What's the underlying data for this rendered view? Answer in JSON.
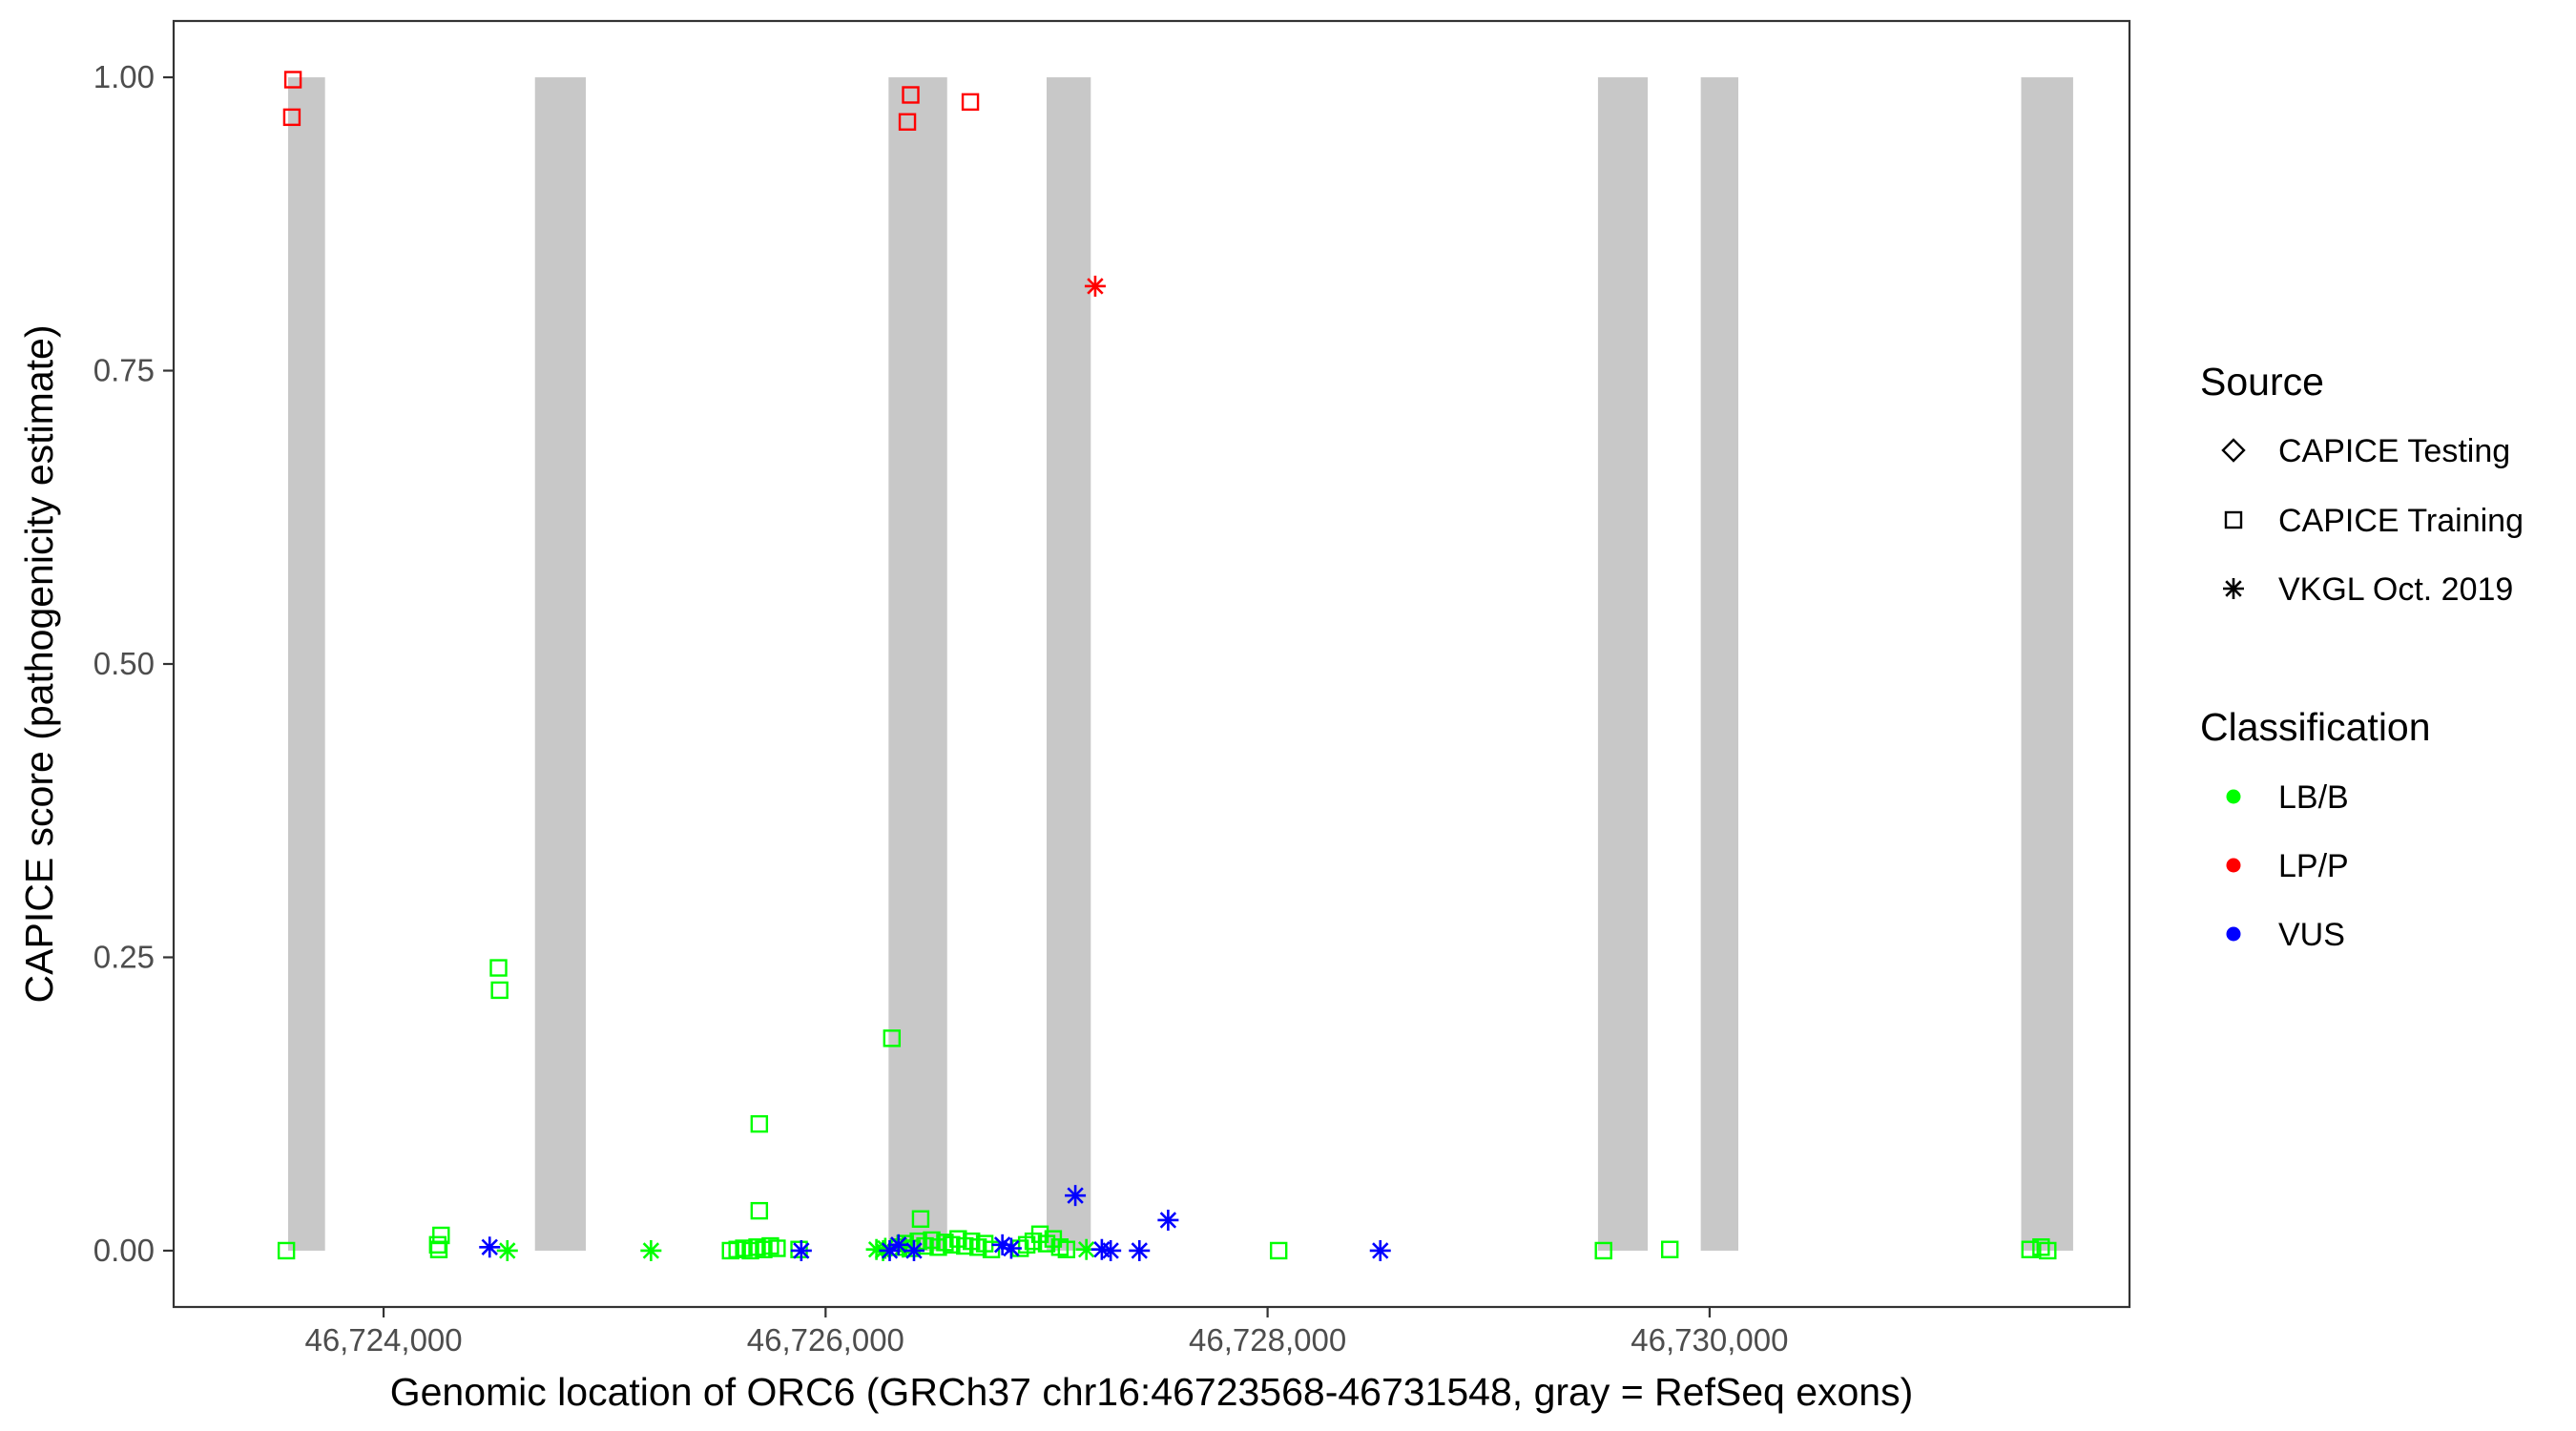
{
  "chart_data": {
    "type": "scatter",
    "xlabel": "Genomic location of ORC6 (GRCh37 chr16:46723568-46731548, gray = RefSeq exons)",
    "ylabel": "CAPICE score (pathogenicity estimate)",
    "xlim": [
      46723050,
      46731900
    ],
    "ylim": [
      -0.048,
      1.048
    ],
    "x_ticks": [
      46724000,
      46726000,
      46728000,
      46730000
    ],
    "x_tick_labels": [
      "46,724,000",
      "46,726,000",
      "46,728,000",
      "46,730,000"
    ],
    "y_ticks": [
      0,
      0.25,
      0.5,
      0.75,
      1.0
    ],
    "y_tick_labels": [
      "0.00",
      "0.25",
      "0.50",
      "0.75",
      "1.00"
    ],
    "grid": false,
    "exons": [
      {
        "start": 46723568,
        "end": 46723735
      },
      {
        "start": 46724685,
        "end": 46724915
      },
      {
        "start": 46726285,
        "end": 46726550
      },
      {
        "start": 46727000,
        "end": 46727200
      },
      {
        "start": 46729495,
        "end": 46729720
      },
      {
        "start": 46729960,
        "end": 46730130
      },
      {
        "start": 46731410,
        "end": 46731645
      }
    ],
    "legend": {
      "placement": "right",
      "source_title": "Source",
      "source_items": [
        {
          "label": "CAPICE Testing",
          "shape": "diamond"
        },
        {
          "label": "CAPICE Training",
          "shape": "square"
        },
        {
          "label": "VKGL Oct. 2019",
          "shape": "asterisk"
        }
      ],
      "class_title": "Classification",
      "class_items": [
        {
          "label": "LB/B",
          "color": "#00ff00"
        },
        {
          "label": "LP/P",
          "color": "#ff0000"
        },
        {
          "label": "VUS",
          "color": "#0000ff"
        }
      ]
    },
    "series": [
      {
        "name": "CAPICE Training",
        "shape": "square",
        "points": [
          [
            46723590,
            0.998,
            "LP/P"
          ],
          [
            46723585,
            0.966,
            "LP/P"
          ],
          [
            46726385,
            0.985,
            "LP/P"
          ],
          [
            46726370,
            0.962,
            "LP/P"
          ],
          [
            46726655,
            0.979,
            "LP/P"
          ],
          [
            46723560,
            0.0,
            "LB/B"
          ],
          [
            46724260,
            0.013,
            "LB/B"
          ],
          [
            46724245,
            0.005,
            "LB/B"
          ],
          [
            46724250,
            0.001,
            "LB/B"
          ],
          [
            46724520,
            0.241,
            "LB/B"
          ],
          [
            46724525,
            0.222,
            "LB/B"
          ],
          [
            46725700,
            0.108,
            "LB/B"
          ],
          [
            46725700,
            0.034,
            "LB/B"
          ],
          [
            46725880,
            0.001,
            "LB/B"
          ],
          [
            46726300,
            0.181,
            "LB/B"
          ],
          [
            46726430,
            0.027,
            "LB/B"
          ],
          [
            46725570,
            0.0,
            "LB/B"
          ],
          [
            46725600,
            0.001,
            "LB/B"
          ],
          [
            46725630,
            0.002,
            "LB/B"
          ],
          [
            46725660,
            0.0,
            "LB/B"
          ],
          [
            46725690,
            0.003,
            "LB/B"
          ],
          [
            46725720,
            0.001,
            "LB/B"
          ],
          [
            46725750,
            0.004,
            "LB/B"
          ],
          [
            46725780,
            0.002,
            "LB/B"
          ],
          [
            46726330,
            0.003,
            "LB/B"
          ],
          [
            46726360,
            0.006,
            "LB/B"
          ],
          [
            46726390,
            0.002,
            "LB/B"
          ],
          [
            46726420,
            0.008,
            "LB/B"
          ],
          [
            46726450,
            0.004,
            "LB/B"
          ],
          [
            46726480,
            0.009,
            "LB/B"
          ],
          [
            46726510,
            0.003,
            "LB/B"
          ],
          [
            46726540,
            0.007,
            "LB/B"
          ],
          [
            46726570,
            0.005,
            "LB/B"
          ],
          [
            46726600,
            0.01,
            "LB/B"
          ],
          [
            46726630,
            0.004,
            "LB/B"
          ],
          [
            46726660,
            0.008,
            "LB/B"
          ],
          [
            46726690,
            0.003,
            "LB/B"
          ],
          [
            46726720,
            0.006,
            "LB/B"
          ],
          [
            46726750,
            0.001,
            "LB/B"
          ],
          [
            46726880,
            0.002,
            "LB/B"
          ],
          [
            46726910,
            0.005,
            "LB/B"
          ],
          [
            46726940,
            0.008,
            "LB/B"
          ],
          [
            46726970,
            0.014,
            "LB/B"
          ],
          [
            46727000,
            0.006,
            "LB/B"
          ],
          [
            46727030,
            0.01,
            "LB/B"
          ],
          [
            46727060,
            0.003,
            "LB/B"
          ],
          [
            46727090,
            0.001,
            "LB/B"
          ],
          [
            46728050,
            0.0,
            "LB/B"
          ],
          [
            46729520,
            0.0,
            "LB/B"
          ],
          [
            46729820,
            0.001,
            "LB/B"
          ],
          [
            46731450,
            0.001,
            "LB/B"
          ],
          [
            46731500,
            0.003,
            "LB/B"
          ],
          [
            46731530,
            0.0,
            "LB/B"
          ]
        ]
      },
      {
        "name": "VKGL Oct. 2019",
        "shape": "asterisk",
        "points": [
          [
            46727220,
            0.822,
            "LP/P"
          ],
          [
            46724560,
            0.0,
            "LB/B"
          ],
          [
            46725210,
            0.0,
            "LB/B"
          ],
          [
            46726230,
            0.001,
            "LB/B"
          ],
          [
            46726270,
            0.002,
            "LB/B"
          ],
          [
            46726260,
            0.0,
            "LB/B"
          ],
          [
            46726350,
            0.003,
            "LB/B"
          ],
          [
            46727180,
            0.001,
            "LB/B"
          ],
          [
            46724480,
            0.003,
            "VUS"
          ],
          [
            46725890,
            0.0,
            "VUS"
          ],
          [
            46726290,
            0.0,
            "VUS"
          ],
          [
            46726330,
            0.005,
            "VUS"
          ],
          [
            46726400,
            0.0,
            "VUS"
          ],
          [
            46726800,
            0.005,
            "VUS"
          ],
          [
            46726840,
            0.002,
            "VUS"
          ],
          [
            46727130,
            0.047,
            "VUS"
          ],
          [
            46727250,
            0.001,
            "VUS"
          ],
          [
            46727290,
            0.0,
            "VUS"
          ],
          [
            46727420,
            0.0,
            "VUS"
          ],
          [
            46727550,
            0.026,
            "VUS"
          ],
          [
            46728510,
            0.0,
            "VUS"
          ]
        ]
      }
    ]
  }
}
